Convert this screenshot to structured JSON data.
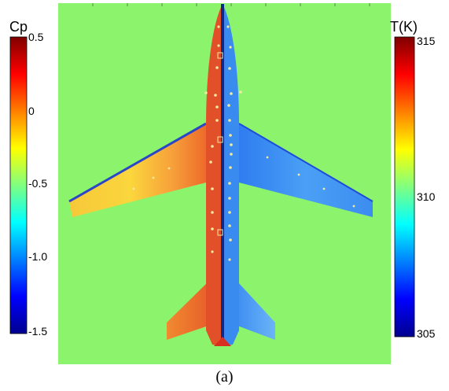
{
  "background_color": "#8cf36c",
  "left_colorbar": {
    "title": "Cp",
    "ticks": [
      "0.5",
      "0",
      "-0.5",
      "-1.0",
      "-1.5"
    ],
    "tick_values": [
      0.5,
      0,
      -0.5,
      -1.0,
      -1.5
    ],
    "range": [
      -1.5,
      0.5
    ]
  },
  "right_colorbar": {
    "title": "T(K)",
    "ticks": [
      "315",
      "310",
      "305"
    ],
    "tick_values": [
      315,
      310,
      305
    ],
    "range": [
      305,
      315
    ]
  },
  "colormap": "jet",
  "caption": "(a)"
}
